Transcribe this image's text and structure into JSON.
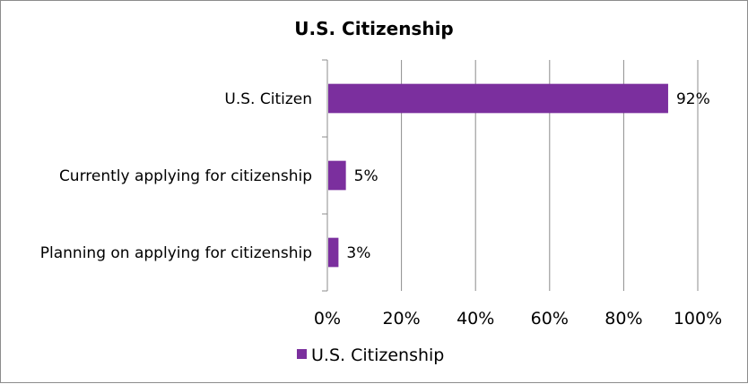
{
  "chart_data": {
    "type": "bar",
    "orientation": "horizontal",
    "title": "U.S. Citizenship",
    "categories": [
      "U.S. Citizen",
      "Currently applying for citizenship",
      "Planning on applying for citizenship"
    ],
    "series": [
      {
        "name": "U.S. Citizenship",
        "values": [
          92,
          5,
          3
        ],
        "data_labels": [
          "92%",
          "5%",
          "3%"
        ],
        "color": "#7b2f9e"
      }
    ],
    "x_ticks": [
      "0%",
      "20%",
      "40%",
      "60%",
      "80%",
      "100%"
    ],
    "xlim": [
      0,
      100
    ],
    "grid": true,
    "legend_position": "bottom-left"
  }
}
